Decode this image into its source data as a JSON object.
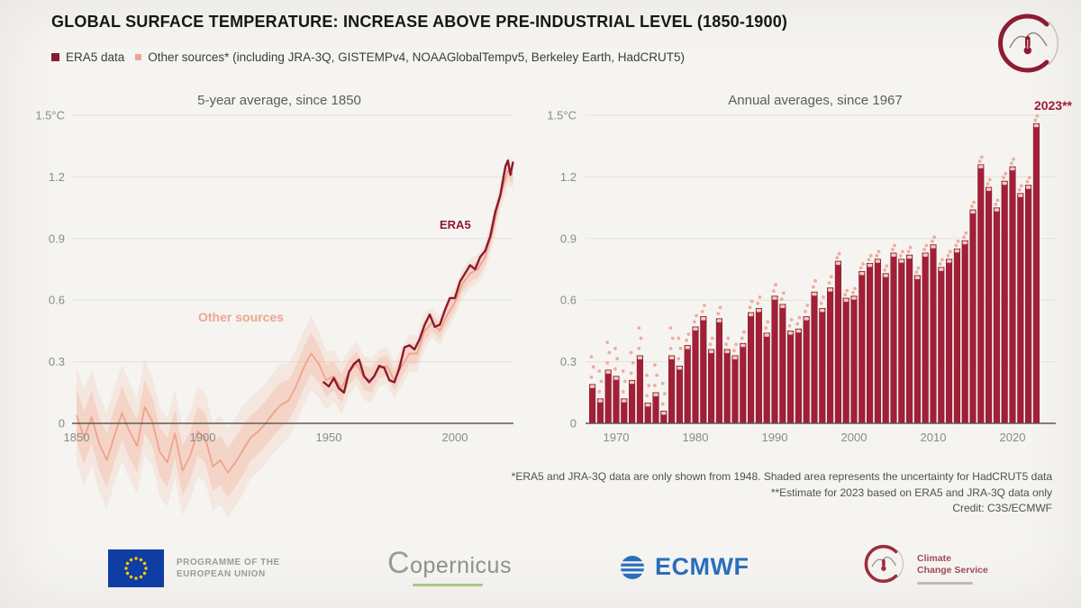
{
  "header": {
    "title": "GLOBAL SURFACE TEMPERATURE: INCREASE ABOVE PRE-INDUSTRIAL LEVEL (1850-1900)",
    "legend": [
      {
        "label": "ERA5 data",
        "color": "#871b33"
      },
      {
        "label": "Other sources* (including JRA-3Q, GISTEMPv4, NOAAGlobalTempv5, Berkeley Earth, HadCRUT5)",
        "color": "#f0a695"
      }
    ]
  },
  "footnotes": {
    "line1": "*ERA5 and JRA-3Q data are only shown from 1948. Shaded area represents the uncertainty for HadCRUT5 data",
    "line2": "**Estimate for 2023 based on ERA5 and JRA-3Q data only",
    "line3": "Credit: C3S/ECMWF"
  },
  "footer": {
    "eu": {
      "line1": "PROGRAMME OF THE",
      "line2": "EUROPEAN UNION"
    },
    "copernicus_wordmark": "Copernicus",
    "ecmwf_wordmark": "ECMWF",
    "c3s": {
      "line1": "Climate",
      "line2": "Change Service"
    }
  },
  "chart_data": [
    {
      "type": "line",
      "title": "5-year average, since 1850",
      "unit": "°C",
      "ylim": [
        0,
        1.5
      ],
      "yticks": [
        0,
        0.3,
        0.6,
        0.9,
        1.2,
        1.5
      ],
      "ytick_labels": [
        "0",
        "0.3",
        "0.6",
        "0.9",
        "1.2",
        "1.5°C"
      ],
      "xticks": [
        1850,
        1900,
        1950,
        2000
      ],
      "annotations": {
        "other": "Other sources",
        "era5": "ERA5"
      },
      "band_color": "#f3b9a3",
      "series": [
        {
          "name": "Other sources (5-year average, value, uncertainty half-width)",
          "color": "#f0a28e",
          "points": [
            [
              1850,
              0.04,
              0.13
            ],
            [
              1853,
              -0.07,
              0.13
            ],
            [
              1856,
              0.03,
              0.13
            ],
            [
              1859,
              -0.1,
              0.13
            ],
            [
              1862,
              -0.18,
              0.13
            ],
            [
              1865,
              -0.06,
              0.13
            ],
            [
              1868,
              0.05,
              0.13
            ],
            [
              1871,
              -0.04,
              0.13
            ],
            [
              1874,
              -0.11,
              0.13
            ],
            [
              1877,
              0.08,
              0.13
            ],
            [
              1880,
              0.01,
              0.12
            ],
            [
              1883,
              -0.14,
              0.12
            ],
            [
              1886,
              -0.19,
              0.12
            ],
            [
              1889,
              -0.05,
              0.12
            ],
            [
              1892,
              -0.23,
              0.12
            ],
            [
              1895,
              -0.16,
              0.12
            ],
            [
              1898,
              -0.04,
              0.12
            ],
            [
              1901,
              -0.07,
              0.12
            ],
            [
              1904,
              -0.21,
              0.12
            ],
            [
              1907,
              -0.18,
              0.12
            ],
            [
              1910,
              -0.24,
              0.12
            ],
            [
              1913,
              -0.19,
              0.12
            ],
            [
              1916,
              -0.13,
              0.12
            ],
            [
              1919,
              -0.07,
              0.11
            ],
            [
              1922,
              -0.04,
              0.11
            ],
            [
              1925,
              0.0,
              0.11
            ],
            [
              1928,
              0.05,
              0.11
            ],
            [
              1931,
              0.09,
              0.11
            ],
            [
              1934,
              0.11,
              0.1
            ],
            [
              1937,
              0.18,
              0.1
            ],
            [
              1940,
              0.27,
              0.1
            ],
            [
              1943,
              0.34,
              0.1
            ],
            [
              1946,
              0.29,
              0.09
            ],
            [
              1949,
              0.21,
              0.08
            ],
            [
              1952,
              0.23,
              0.07
            ],
            [
              1955,
              0.17,
              0.07
            ],
            [
              1958,
              0.25,
              0.06
            ],
            [
              1961,
              0.29,
              0.06
            ],
            [
              1964,
              0.22,
              0.06
            ],
            [
              1967,
              0.21,
              0.06
            ],
            [
              1970,
              0.27,
              0.05
            ],
            [
              1973,
              0.28,
              0.05
            ],
            [
              1976,
              0.21,
              0.05
            ],
            [
              1979,
              0.28,
              0.05
            ],
            [
              1982,
              0.34,
              0.05
            ],
            [
              1985,
              0.34,
              0.05
            ],
            [
              1988,
              0.45,
              0.05
            ],
            [
              1991,
              0.49,
              0.04
            ],
            [
              1994,
              0.45,
              0.04
            ],
            [
              1997,
              0.53,
              0.04
            ],
            [
              2000,
              0.59,
              0.04
            ],
            [
              2003,
              0.68,
              0.04
            ],
            [
              2006,
              0.73,
              0.04
            ],
            [
              2009,
              0.75,
              0.04
            ],
            [
              2012,
              0.81,
              0.04
            ],
            [
              2015,
              0.94,
              0.04
            ],
            [
              2018,
              1.11,
              0.04
            ],
            [
              2021,
              1.23,
              0.04
            ],
            [
              2023,
              1.21,
              0.04
            ]
          ]
        },
        {
          "name": "ERA5 (5-year average)",
          "color": "#8c1a2f",
          "points": [
            [
              1948,
              0.2
            ],
            [
              1950,
              0.18
            ],
            [
              1952,
              0.22
            ],
            [
              1954,
              0.17
            ],
            [
              1956,
              0.15
            ],
            [
              1958,
              0.25
            ],
            [
              1960,
              0.29
            ],
            [
              1962,
              0.31
            ],
            [
              1964,
              0.23
            ],
            [
              1966,
              0.2
            ],
            [
              1968,
              0.23
            ],
            [
              1970,
              0.28
            ],
            [
              1972,
              0.27
            ],
            [
              1974,
              0.21
            ],
            [
              1976,
              0.2
            ],
            [
              1978,
              0.27
            ],
            [
              1980,
              0.37
            ],
            [
              1982,
              0.38
            ],
            [
              1984,
              0.36
            ],
            [
              1986,
              0.41
            ],
            [
              1988,
              0.48
            ],
            [
              1990,
              0.53
            ],
            [
              1992,
              0.47
            ],
            [
              1994,
              0.48
            ],
            [
              1996,
              0.55
            ],
            [
              1998,
              0.61
            ],
            [
              2000,
              0.61
            ],
            [
              2002,
              0.69
            ],
            [
              2004,
              0.73
            ],
            [
              2006,
              0.77
            ],
            [
              2008,
              0.75
            ],
            [
              2010,
              0.81
            ],
            [
              2012,
              0.84
            ],
            [
              2014,
              0.91
            ],
            [
              2016,
              1.03
            ],
            [
              2018,
              1.11
            ],
            [
              2020,
              1.25
            ],
            [
              2021,
              1.28
            ],
            [
              2022,
              1.21
            ],
            [
              2023,
              1.27
            ]
          ]
        }
      ]
    },
    {
      "type": "bar",
      "title": "Annual averages, since 1967",
      "label_2023": "2023**",
      "unit": "°C",
      "ylim": [
        0,
        1.5
      ],
      "yticks": [
        0,
        0.3,
        0.6,
        0.9,
        1.2,
        1.5
      ],
      "ytick_labels": [
        "0",
        "0.3",
        "0.6",
        "0.9",
        "1.2",
        "1.5°C"
      ],
      "xticks": [
        1970,
        1980,
        1990,
        2000,
        2010,
        2020
      ],
      "bar_color": "#a31e37",
      "bar_edge_color": "#7d1527",
      "cap_color": "#f2cabc",
      "marker_color": "#eda08f",
      "marker_offsets": {
        "until_1978": [
          0.03,
          0.08,
          0.13
        ],
        "until_1997": [
          0.02,
          0.05
        ],
        "after": [
          0.012,
          0.032
        ]
      },
      "years": [
        1967,
        1968,
        1969,
        1970,
        1971,
        1972,
        1973,
        1974,
        1975,
        1976,
        1977,
        1978,
        1979,
        1980,
        1981,
        1982,
        1983,
        1984,
        1985,
        1986,
        1987,
        1988,
        1989,
        1990,
        1991,
        1992,
        1993,
        1994,
        1995,
        1996,
        1997,
        1998,
        1999,
        2000,
        2001,
        2002,
        2003,
        2004,
        2005,
        2006,
        2007,
        2008,
        2009,
        2010,
        2011,
        2012,
        2013,
        2014,
        2015,
        2016,
        2017,
        2018,
        2019,
        2020,
        2021,
        2022,
        2023
      ],
      "values": [
        0.19,
        0.12,
        0.26,
        0.23,
        0.12,
        0.21,
        0.33,
        0.1,
        0.15,
        0.06,
        0.33,
        0.28,
        0.38,
        0.47,
        0.52,
        0.36,
        0.51,
        0.36,
        0.33,
        0.39,
        0.54,
        0.56,
        0.44,
        0.62,
        0.58,
        0.45,
        0.46,
        0.52,
        0.64,
        0.56,
        0.66,
        0.79,
        0.61,
        0.62,
        0.74,
        0.78,
        0.8,
        0.73,
        0.83,
        0.8,
        0.82,
        0.72,
        0.83,
        0.87,
        0.76,
        0.8,
        0.85,
        0.89,
        1.04,
        1.26,
        1.15,
        1.05,
        1.18,
        1.25,
        1.12,
        1.16,
        1.46
      ]
    }
  ]
}
